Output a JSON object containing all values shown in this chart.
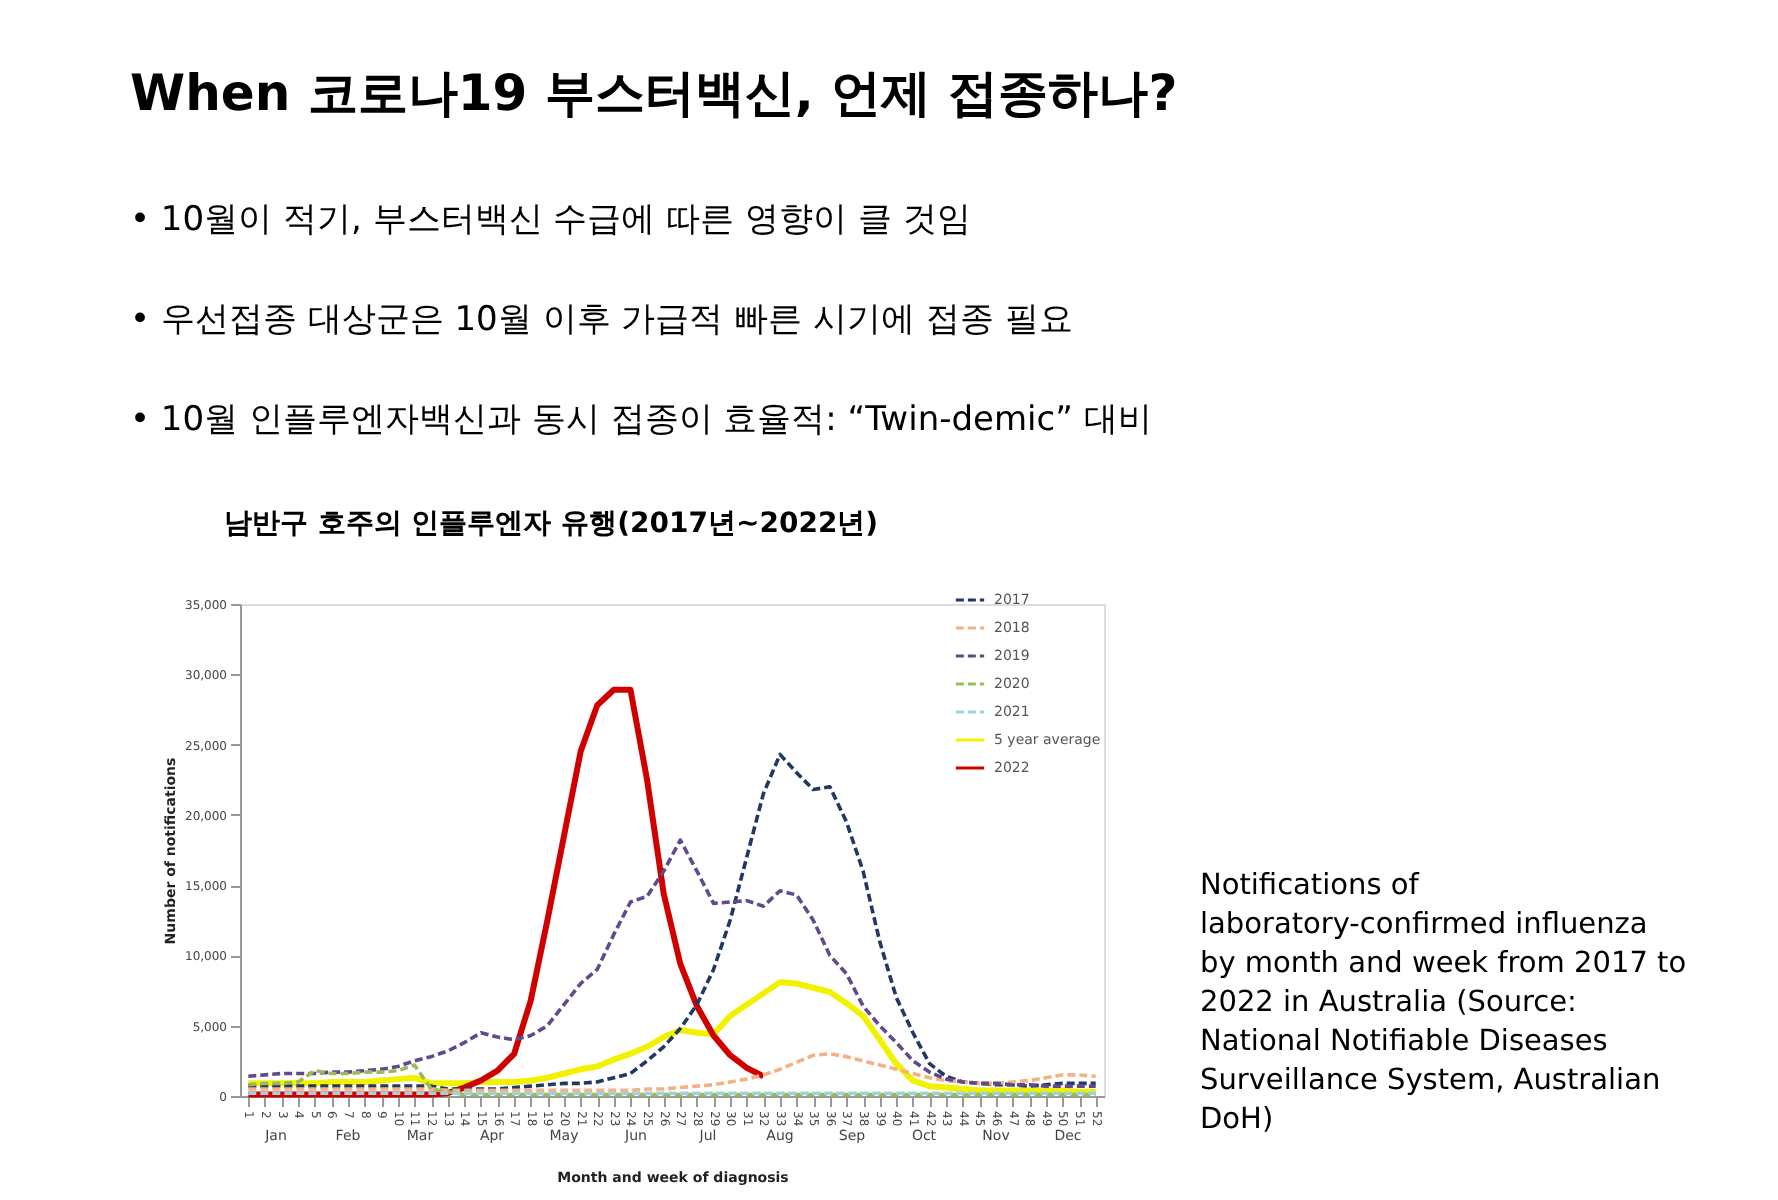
{
  "chart_data": {
    "type": "line",
    "title": "When 코로나19 부스터백신, 언제 접종하나?",
    "subtitle": "남반구 호주의 인플루엔자 유행(2017년~2022년)",
    "xlabel": "Month and week of diagnosis",
    "ylabel": "Number of notifications",
    "annotations": [
      "•   10월이 적기, 부스터백신 수급에 따른 영향이 클 것임",
      "•   우선접종 대상군은 10월 이후 가급적 빠른 시기에 접종 필요",
      "•   10월 인플루엔자백신과 동시 접종이 효율적: “Twin-demic” 대비",
      "Notifications of laboratory-confirmed influenza by month and week from 2017 to 2022 in Australia (Source: National Notifiable Diseases Surveillance System, Australian DoH)",
      "Jan",
      "Feb",
      "Mar",
      "Apr",
      "May",
      "Jun",
      "Jul",
      "Aug",
      "Sep",
      "Oct",
      "Nov",
      "Dec"
    ],
    "categories": [
      "1",
      "2",
      "3",
      "4",
      "5",
      "6",
      "7",
      "8",
      "9",
      "10",
      "11",
      "12",
      "13",
      "14",
      "15",
      "16",
      "17",
      "18",
      "19",
      "20",
      "21",
      "22",
      "23",
      "24",
      "25",
      "26",
      "27",
      "28",
      "29",
      "30",
      "31",
      "32",
      "33",
      "34",
      "35",
      "36",
      "37",
      "38",
      "39",
      "40",
      "41",
      "42",
      "43",
      "44",
      "45",
      "46",
      "47",
      "48",
      "49",
      "50",
      "51",
      "52"
    ],
    "ylim": [
      0,
      35000
    ],
    "yticks": [
      0,
      {
        "value": 5000,
        "label": "5,000"
      },
      {
        "value": 10000,
        "label": "10,000"
      },
      {
        "value": 15000,
        "label": "15,000"
      },
      {
        "value": 20000,
        "label": "20,000"
      },
      {
        "value": 25000,
        "label": "25,000"
      },
      {
        "value": 30000,
        "label": "30,000"
      },
      {
        "value": 35000,
        "label": "35,000"
      }
    ],
    "grid": false,
    "legend": "top right",
    "series": [
      {
        "name": "2017",
        "color": "#1f3864",
        "line_style": "dashed",
        "values": [
          700,
          700,
          700,
          700,
          700,
          700,
          700,
          700,
          700,
          700,
          700,
          700,
          500,
          500,
          500,
          500,
          600,
          700,
          800,
          900,
          900,
          1000,
          1300,
          1600,
          2500,
          3500,
          4800,
          6500,
          9000,
          12500,
          17000,
          21500,
          24300,
          23000,
          21800,
          22000,
          19500,
          16000,
          11000,
          7000,
          4500,
          2300,
          1400,
          1000,
          900,
          800,
          800,
          700,
          800,
          900,
          900,
          900
        ]
      },
      {
        "name": "2018",
        "color": "#f4b183",
        "line_style": "dashed",
        "values": [
          500,
          500,
          500,
          500,
          500,
          500,
          500,
          500,
          500,
          500,
          500,
          500,
          400,
          400,
          400,
          400,
          400,
          400,
          400,
          400,
          400,
          400,
          400,
          400,
          500,
          500,
          600,
          700,
          800,
          1000,
          1200,
          1500,
          1900,
          2400,
          2900,
          3000,
          2800,
          2500,
          2200,
          1900,
          1600,
          1300,
          1100,
          1000,
          900,
          900,
          1000,
          1100,
          1300,
          1500,
          1500,
          1400
        ]
      },
      {
        "name": "2019",
        "color": "#604a8b",
        "line_style": "dashed",
        "values": [
          1400,
          1500,
          1600,
          1600,
          1600,
          1700,
          1700,
          1800,
          1900,
          2100,
          2500,
          2800,
          3200,
          3800,
          4500,
          4200,
          4000,
          4300,
          5000,
          6500,
          8000,
          9000,
          11500,
          13800,
          14200,
          16000,
          18200,
          16000,
          13700,
          13800,
          13900,
          13500,
          14600,
          14300,
          12500,
          10000,
          8700,
          6400,
          5000,
          3800,
          2500,
          1700,
          1200,
          1000,
          900,
          900,
          800,
          800,
          700,
          700,
          700,
          700
        ]
      },
      {
        "name": "2020",
        "color": "#9bbb59",
        "line_style": "dashed",
        "values": [
          800,
          900,
          900,
          1000,
          1800,
          1600,
          1600,
          1700,
          1700,
          1800,
          2200,
          500,
          300,
          100,
          100,
          100,
          100,
          100,
          100,
          100,
          100,
          100,
          100,
          100,
          100,
          100,
          100,
          100,
          100,
          100,
          100,
          100,
          100,
          100,
          100,
          100,
          100,
          100,
          100,
          100,
          100,
          100,
          100,
          100,
          100,
          100,
          100,
          100,
          100,
          100,
          100,
          100
        ]
      },
      {
        "name": "2021",
        "color": "#9dd3e0",
        "line_style": "dashed",
        "values": [
          200,
          200,
          200,
          200,
          200,
          200,
          200,
          200,
          200,
          200,
          200,
          200,
          200,
          200,
          200,
          200,
          200,
          200,
          200,
          200,
          200,
          200,
          200,
          200,
          200,
          200,
          200,
          200,
          200,
          200,
          200,
          200,
          200,
          200,
          200,
          200,
          200,
          200,
          200,
          200,
          200,
          200,
          200,
          200,
          200,
          200,
          200,
          200,
          200,
          200,
          200,
          200
        ]
      },
      {
        "name": "5 year average",
        "color": "#f2f200",
        "line_style": "solid",
        "values": [
          900,
          900,
          900,
          900,
          900,
          1000,
          1000,
          1000,
          1100,
          1200,
          1300,
          900,
          900,
          900,
          1000,
          1000,
          1000,
          1100,
          1300,
          1600,
          1900,
          2100,
          2600,
          3000,
          3500,
          4200,
          4700,
          4500,
          4400,
          5700,
          6500,
          7300,
          8100,
          8000,
          7700,
          7400,
          6600,
          5700,
          4000,
          2300,
          1100,
          700,
          600,
          500,
          400,
          400,
          400,
          400,
          400,
          400,
          300,
          300
        ]
      },
      {
        "name": "2022",
        "color": "#d00000",
        "line_style": "solid",
        "values": [
          100,
          100,
          100,
          100,
          100,
          100,
          100,
          100,
          100,
          100,
          100,
          100,
          200,
          600,
          1100,
          1800,
          3000,
          6800,
          12500,
          18500,
          24500,
          27800,
          28900,
          28900,
          22500,
          14400,
          9400,
          6400,
          4300,
          2900,
          2000,
          1400,
          null,
          null,
          null,
          null,
          null,
          null,
          null,
          null,
          null,
          null,
          null,
          null,
          null,
          null,
          null,
          null,
          null,
          null,
          null,
          null
        ]
      }
    ]
  }
}
